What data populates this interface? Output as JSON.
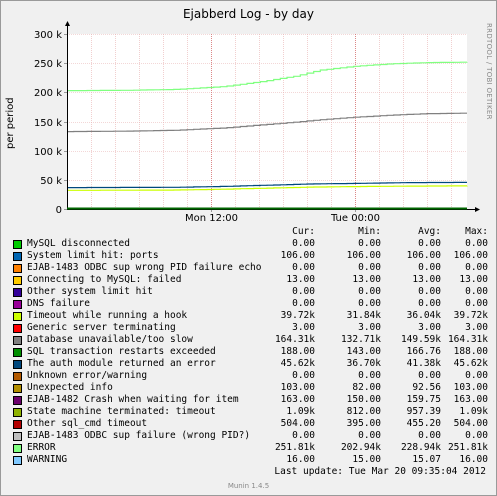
{
  "chart_data": {
    "type": "line",
    "title": "Ejabberd Log - by day",
    "ylabel": "per period",
    "xlabel": "",
    "ylim": [
      0,
      300000
    ],
    "y_ticks": [
      "0",
      "50 k",
      "100 k",
      "150 k",
      "200 k",
      "250 k",
      "300 k"
    ],
    "x_range_hours": [
      0,
      33.3
    ],
    "x_ticks": [
      {
        "label": "Mon 12:00",
        "hour": 12
      },
      {
        "label": "Tue 00:00",
        "hour": 24
      }
    ],
    "grid": true,
    "legend_placement": "below",
    "columns": [
      "Cur:",
      "Min:",
      "Avg:",
      "Max:"
    ],
    "series": [
      {
        "name": "MySQL disconnected",
        "color": "#00cc00",
        "stats": [
          "0.00",
          "0.00",
          "0.00",
          "0.00"
        ],
        "points": [
          [
            0,
            0
          ],
          [
            33.3,
            0
          ]
        ]
      },
      {
        "name": "System limit hit: ports",
        "color": "#0066b3",
        "stats": [
          "106.00",
          "106.00",
          "106.00",
          "106.00"
        ],
        "points": [
          [
            0,
            106
          ],
          [
            33.3,
            106
          ]
        ]
      },
      {
        "name": "EJAB-1483 ODBC sup wrong PID failure echo",
        "color": "#ff8000",
        "stats": [
          "0.00",
          "0.00",
          "0.00",
          "0.00"
        ],
        "points": [
          [
            0,
            0
          ],
          [
            33.3,
            0
          ]
        ]
      },
      {
        "name": "Connecting to MySQL: failed",
        "color": "#ffcc00",
        "stats": [
          "13.00",
          "13.00",
          "13.00",
          "13.00"
        ],
        "points": [
          [
            0,
            13
          ],
          [
            33.3,
            13
          ]
        ]
      },
      {
        "name": "Other system limit hit",
        "color": "#330099",
        "stats": [
          "0.00",
          "0.00",
          "0.00",
          "0.00"
        ],
        "points": [
          [
            0,
            0
          ],
          [
            33.3,
            0
          ]
        ]
      },
      {
        "name": "DNS failure",
        "color": "#990099",
        "stats": [
          "0.00",
          "0.00",
          "0.00",
          "0.00"
        ],
        "points": [
          [
            0,
            0
          ],
          [
            33.3,
            0
          ]
        ]
      },
      {
        "name": "Timeout while running a hook",
        "color": "#ccff00",
        "stats": [
          "39.72k",
          "31.84k",
          "36.04k",
          "39.72k"
        ],
        "points": [
          [
            0,
            32000
          ],
          [
            9,
            32500
          ],
          [
            13,
            34000
          ],
          [
            16,
            35500
          ],
          [
            20,
            37500
          ],
          [
            24,
            38500
          ],
          [
            28,
            39200
          ],
          [
            33.3,
            39700
          ]
        ]
      },
      {
        "name": "Generic server terminating",
        "color": "#ff0000",
        "stats": [
          "3.00",
          "3.00",
          "3.00",
          "3.00"
        ],
        "points": [
          [
            0,
            3
          ],
          [
            33.3,
            3
          ]
        ]
      },
      {
        "name": "Database unavailable/too slow",
        "color": "#808080",
        "stats": [
          "164.31k",
          "132.71k",
          "149.59k",
          "164.31k"
        ],
        "points": [
          [
            0,
            132700
          ],
          [
            5,
            133500
          ],
          [
            9,
            135000
          ],
          [
            13,
            139000
          ],
          [
            16,
            144000
          ],
          [
            19,
            149000
          ],
          [
            21,
            153000
          ],
          [
            24,
            157500
          ],
          [
            27,
            161000
          ],
          [
            30,
            163500
          ],
          [
            33.3,
            164300
          ]
        ]
      },
      {
        "name": "SQL transaction restarts exceeded",
        "color": "#008f00",
        "stats": [
          "188.00",
          "143.00",
          "166.76",
          "188.00"
        ],
        "points": [
          [
            0,
            143
          ],
          [
            12,
            160
          ],
          [
            24,
            175
          ],
          [
            33.3,
            188
          ]
        ]
      },
      {
        "name": "The auth module returned an error",
        "color": "#00487d",
        "stats": [
          "45.62k",
          "36.70k",
          "41.38k",
          "45.62k"
        ],
        "points": [
          [
            0,
            36700
          ],
          [
            9,
            37200
          ],
          [
            13,
            38800
          ],
          [
            16,
            40500
          ],
          [
            20,
            42800
          ],
          [
            24,
            44000
          ],
          [
            28,
            45200
          ],
          [
            33.3,
            45600
          ]
        ]
      },
      {
        "name": "Unknown error/warning",
        "color": "#b35a00",
        "stats": [
          "0.00",
          "0.00",
          "0.00",
          "0.00"
        ],
        "points": [
          [
            0,
            0
          ],
          [
            33.3,
            0
          ]
        ]
      },
      {
        "name": "Unexpected info",
        "color": "#b38f00",
        "stats": [
          "103.00",
          "82.00",
          "92.56",
          "103.00"
        ],
        "points": [
          [
            0,
            82
          ],
          [
            12,
            90
          ],
          [
            24,
            97
          ],
          [
            33.3,
            103
          ]
        ]
      },
      {
        "name": "EJAB-1482 Crash when waiting for item",
        "color": "#6b006b",
        "stats": [
          "163.00",
          "150.00",
          "159.75",
          "163.00"
        ],
        "points": [
          [
            0,
            150
          ],
          [
            12,
            157
          ],
          [
            24,
            161
          ],
          [
            33.3,
            163
          ]
        ]
      },
      {
        "name": "State machine terminated: timeout",
        "color": "#8fb300",
        "stats": [
          "1.09k",
          "812.00",
          "957.39",
          "1.09k"
        ],
        "points": [
          [
            0,
            812
          ],
          [
            12,
            900
          ],
          [
            24,
            1000
          ],
          [
            33.3,
            1090
          ]
        ]
      },
      {
        "name": "Other sql_cmd timeout",
        "color": "#b30000",
        "stats": [
          "504.00",
          "395.00",
          "455.20",
          "504.00"
        ],
        "points": [
          [
            0,
            395
          ],
          [
            12,
            440
          ],
          [
            24,
            480
          ],
          [
            33.3,
            504
          ]
        ]
      },
      {
        "name": "EJAB-1483 ODBC sup failure (wrong PID?)",
        "color": "#bebebe",
        "stats": [
          "0.00",
          "0.00",
          "0.00",
          "0.00"
        ],
        "points": [
          [
            0,
            0
          ],
          [
            33.3,
            0
          ]
        ]
      },
      {
        "name": "ERROR",
        "color": "#80ff80",
        "stats": [
          "251.81k",
          "202.94k",
          "228.94k",
          "251.81k"
        ],
        "points": [
          [
            0,
            202900
          ],
          [
            5,
            203500
          ],
          [
            9,
            205000
          ],
          [
            13,
            210000
          ],
          [
            16,
            218000
          ],
          [
            19,
            228000
          ],
          [
            21,
            238000
          ],
          [
            24,
            245000
          ],
          [
            27,
            249000
          ],
          [
            30,
            251000
          ],
          [
            33.3,
            251800
          ]
        ]
      },
      {
        "name": "WARNING",
        "color": "#80c9ff",
        "stats": [
          "16.00",
          "15.00",
          "15.07",
          "16.00"
        ],
        "points": [
          [
            0,
            15
          ],
          [
            33.3,
            16
          ]
        ]
      }
    ]
  },
  "last_update": "Last update:  Tue Mar 20 09:35:04 2012",
  "side_credit": "RRDTOOL / TOBI OETIKER",
  "footer": "Munin 1.4.5"
}
